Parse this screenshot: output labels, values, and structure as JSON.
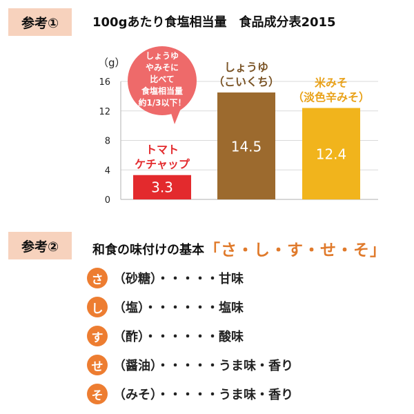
{
  "section1": {
    "tag": "参考①",
    "title": "100gあたり食塩相当量　食品成分表2015"
  },
  "colors": {
    "tag_bg": "#f7d2bd",
    "ketchup": "#e32a2d",
    "shoyu": "#9c6a2e",
    "miso": "#f1b41c",
    "bubble": "#ee6a6a",
    "accent": "#e07a2b"
  },
  "chart_data": {
    "type": "bar",
    "unit_label": "（g）",
    "ylim": [
      0,
      16
    ],
    "yticks": [
      0,
      4,
      8,
      12,
      16
    ],
    "categories": [
      {
        "lines": [
          "トマト",
          "ケチャップ"
        ],
        "color": "#e32a2d"
      },
      {
        "lines": [
          "しょうゆ",
          "（こいくち）"
        ],
        "color": "#7a5426"
      },
      {
        "lines": [
          "米みそ",
          "（淡色辛みそ）"
        ],
        "color": "#e9a21a"
      }
    ],
    "values": [
      3.3,
      14.5,
      12.4
    ],
    "value_labels": [
      "3.3",
      "14.5",
      "12.4"
    ],
    "bar_colors": [
      "#e32a2d",
      "#9c6a2e",
      "#f1b41c"
    ],
    "annotation": {
      "lines": [
        "しょうゆ",
        "やみそに",
        "比べて",
        "食塩相当量",
        "約1/3以下！"
      ]
    }
  },
  "section2": {
    "tag": "参考②",
    "title_prefix": "和食の味付けの基本",
    "title_highlight": "「さ・し・す・せ・そ」",
    "items": [
      {
        "char": "さ",
        "text": "（砂糖）・・・・・甘味"
      },
      {
        "char": "し",
        "text": "（塩）・・・・・・塩味"
      },
      {
        "char": "す",
        "text": "（酢）・・・・・・酸味"
      },
      {
        "char": "せ",
        "text": "（醤油）・・・・・うま味・香り"
      },
      {
        "char": "そ",
        "text": "（みそ）・・・・・うま味・香り"
      }
    ]
  }
}
